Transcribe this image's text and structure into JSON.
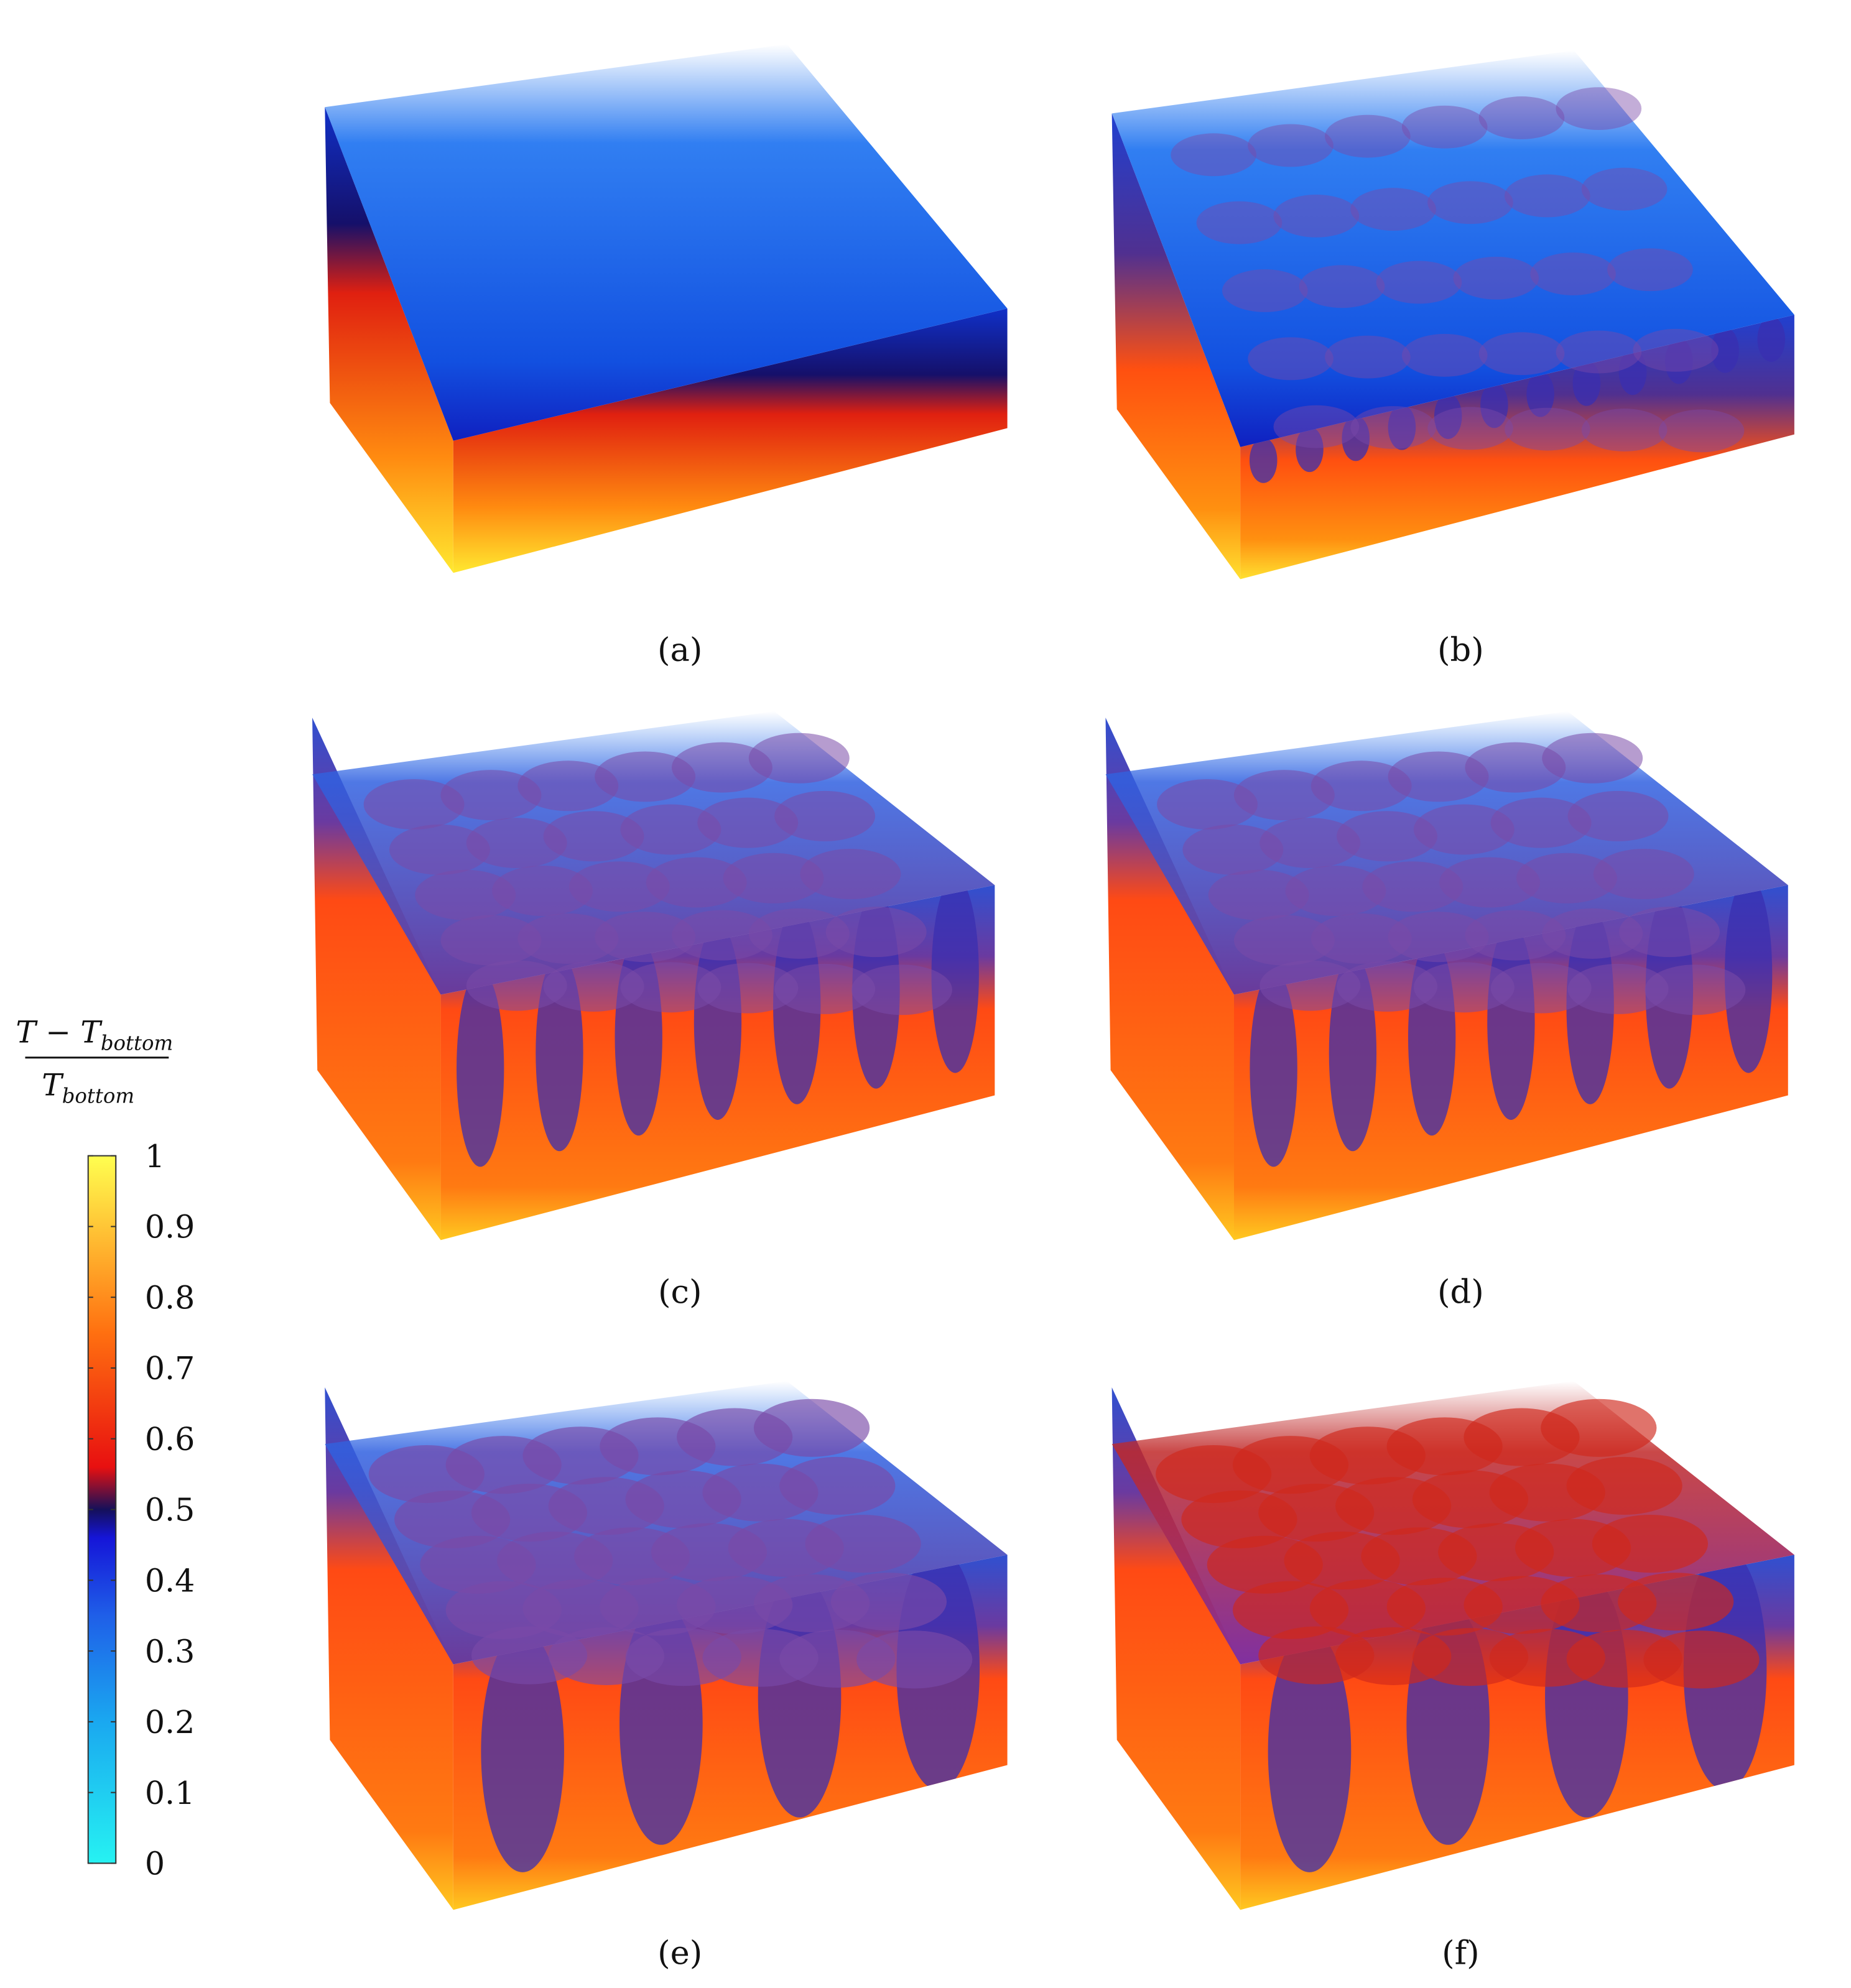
{
  "colorbar": {
    "label": {
      "numerator": {
        "symbol": "T − T",
        "subscript": "bottom"
      },
      "denominator": {
        "symbol": "T",
        "subscript": "bottom"
      }
    },
    "range": [
      0,
      1
    ],
    "ticks": [
      0,
      0.1,
      0.2,
      0.3,
      0.4,
      0.5,
      0.6,
      0.7,
      0.8,
      0.9,
      1
    ],
    "colormap": [
      {
        "value": 0,
        "color": "#26f2f2"
      },
      {
        "value": 0.2,
        "color": "#1aa8f0"
      },
      {
        "value": 0.35,
        "color": "#1f5fe8"
      },
      {
        "value": 0.46,
        "color": "#1515d8"
      },
      {
        "value": 0.5,
        "color": "#15105a"
      },
      {
        "value": 0.56,
        "color": "#e81010"
      },
      {
        "value": 0.75,
        "color": "#ff7010"
      },
      {
        "value": 1,
        "color": "#ffff50"
      }
    ]
  },
  "panels": [
    {
      "caption": "(a)"
    },
    {
      "caption": "(b)"
    },
    {
      "caption": "(c)"
    },
    {
      "caption": "(d)"
    },
    {
      "caption": "(e)"
    },
    {
      "caption": "(f)"
    }
  ]
}
